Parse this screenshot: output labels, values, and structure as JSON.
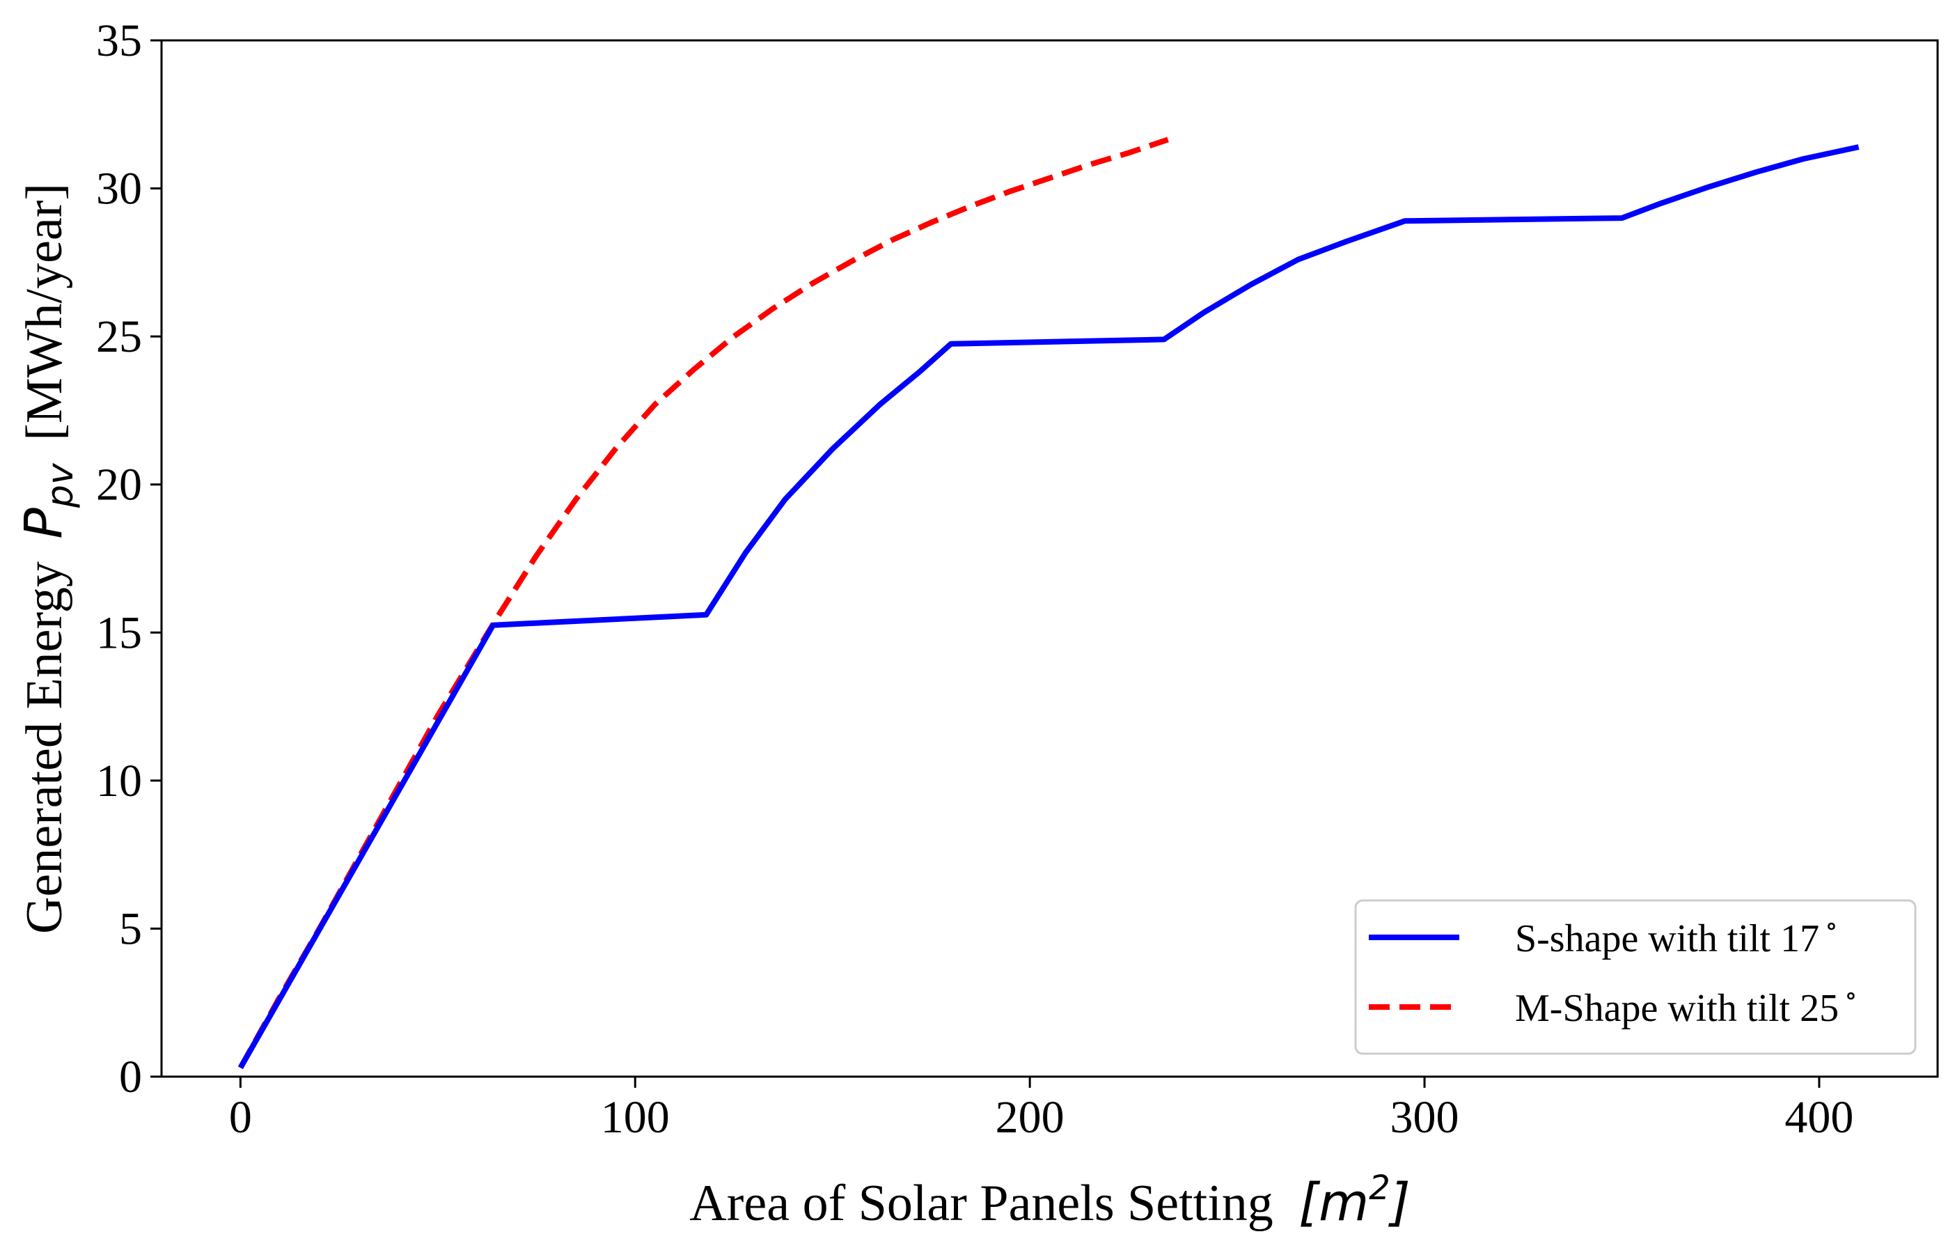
{
  "chart_data": {
    "type": "line",
    "title": "",
    "xlabel": "Area of Solar Panels Setting",
    "xlabel_math": "[m",
    "xlabel_math_sup": "2",
    "xlabel_math_close": "]",
    "ylabel_prefix": "Generated Energy",
    "ylabel_math": "P",
    "ylabel_math_sub": "pv",
    "ylabel_suffix": "[MWh/year]",
    "xlim": [
      -20,
      430
    ],
    "ylim": [
      0,
      35
    ],
    "xticks": [
      0,
      100,
      200,
      300,
      400
    ],
    "yticks": [
      0,
      5,
      10,
      15,
      20,
      25,
      30,
      35
    ],
    "grid": false,
    "legend_position": "bottom-right",
    "series": [
      {
        "name": "S-shape with tilt 17$^\\circ$",
        "label": "S-shape with tilt 17",
        "label_sup": "∘",
        "color": "#0000ff",
        "style": "solid",
        "x": [
          0,
          64,
          118,
          128,
          138,
          150,
          162,
          172,
          180,
          234,
          244,
          256,
          268,
          280,
          295,
          350,
          360,
          372,
          384,
          396,
          410
        ],
        "y": [
          0.3,
          15.25,
          15.6,
          17.7,
          19.5,
          21.2,
          22.7,
          23.8,
          24.75,
          24.9,
          25.8,
          26.75,
          27.6,
          28.2,
          28.9,
          29.0,
          29.5,
          30.05,
          30.55,
          31.0,
          31.4
        ]
      },
      {
        "name": "M-Shape with tilt 25$^\\circ$",
        "label": "M-Shape with tilt 25",
        "label_sup": "∘",
        "color": "#ff0000",
        "style": "dashed",
        "x": [
          0,
          10,
          20,
          30,
          40,
          50,
          60,
          65,
          75,
          85,
          95,
          105,
          115,
          125,
          135,
          145,
          155,
          165,
          175,
          185,
          195,
          205,
          215,
          225,
          235
        ],
        "y": [
          0.3,
          2.7,
          5.0,
          7.4,
          9.8,
          12.2,
          14.4,
          15.5,
          17.6,
          19.5,
          21.2,
          22.7,
          23.9,
          25.0,
          25.95,
          26.8,
          27.55,
          28.25,
          28.85,
          29.4,
          29.9,
          30.35,
          30.8,
          31.2,
          31.65
        ]
      }
    ]
  }
}
